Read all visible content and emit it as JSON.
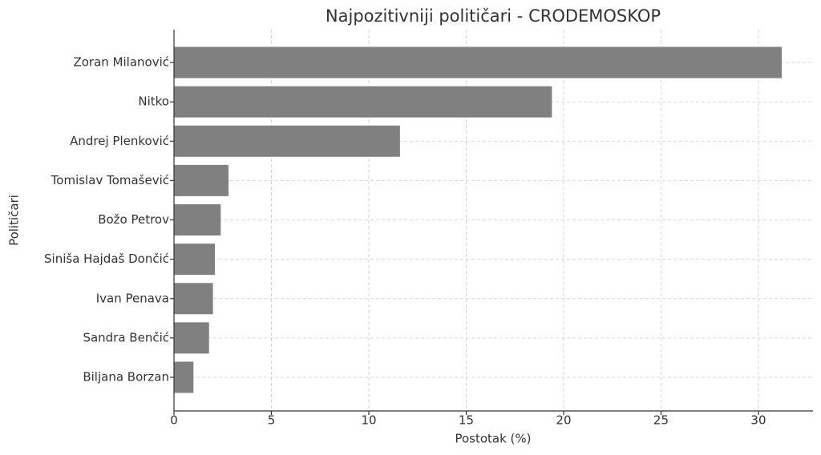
{
  "chart_data": {
    "type": "barh",
    "title": "Najpozitivniji političari - CRODEMOSKOP",
    "x_label": "Postotak (%)",
    "y_label": "Političari",
    "categories": [
      "Zoran Milanović",
      "Nitko",
      "Andrej Plenković",
      "Tomislav Tomašević",
      "Božo Petrov",
      "Siniša Hajdaš Dončić",
      "Ivan Penava",
      "Sandra Benčić",
      "Biljana Borzan"
    ],
    "values": [
      31.2,
      19.4,
      11.6,
      2.8,
      2.4,
      2.1,
      2.0,
      1.8,
      1.0
    ],
    "color": "#808080",
    "xlim": [
      0,
      32.8
    ],
    "xticks": [
      0,
      5,
      10,
      15,
      20,
      25,
      30
    ],
    "grid": true
  }
}
